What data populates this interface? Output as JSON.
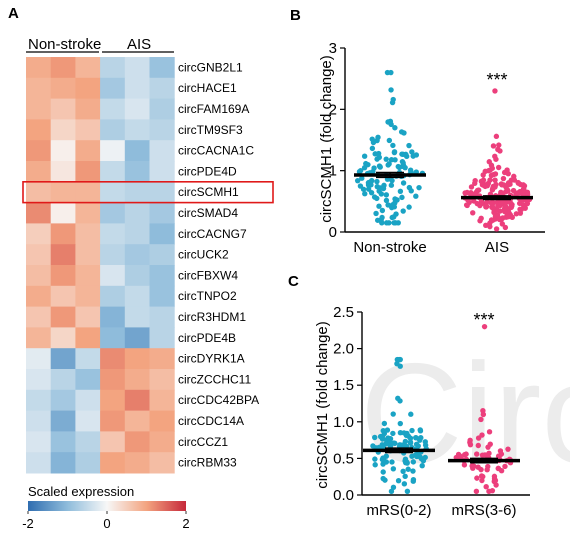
{
  "chart_data": [
    {
      "panel": "A",
      "type": "heatmap",
      "group_labels": [
        "Non-stroke",
        "AIS"
      ],
      "columns_per_group": 3,
      "rows": [
        "circGNB2L1",
        "circHACE1",
        "circFAM169A",
        "circTM9SF3",
        "circCACNA1C",
        "circPDE4D",
        "circSCMH1",
        "circSMAD4",
        "circCACNG7",
        "circUCK2",
        "circFBXW4",
        "circTNPO2",
        "circR3HDM1",
        "circPDE4B",
        "circDYRK1A",
        "circZCCHC11",
        "circCDC42BPA",
        "circCDC14A",
        "circCCZ1",
        "circRBM33"
      ],
      "highlighted_row": "circSCMH1",
      "values": [
        [
          0.9,
          1.1,
          0.8,
          -0.6,
          -0.4,
          -0.9
        ],
        [
          0.8,
          0.9,
          1.0,
          -0.8,
          -0.4,
          -0.6
        ],
        [
          0.8,
          0.6,
          0.9,
          -0.5,
          -0.3,
          -0.7
        ],
        [
          1.0,
          0.4,
          0.6,
          -0.7,
          -0.5,
          -0.6
        ],
        [
          1.1,
          0.1,
          0.9,
          -0.1,
          -1.0,
          -0.4
        ],
        [
          0.9,
          0.2,
          1.1,
          -0.5,
          -0.9,
          -0.4
        ],
        [
          0.7,
          0.8,
          0.8,
          -0.5,
          -0.6,
          -0.6
        ],
        [
          1.2,
          0.1,
          0.8,
          -0.8,
          -0.6,
          -0.8
        ],
        [
          0.5,
          1.1,
          0.7,
          -0.5,
          -0.6,
          -1.0
        ],
        [
          0.6,
          1.3,
          0.7,
          -0.6,
          -0.8,
          -0.7
        ],
        [
          0.7,
          1.1,
          0.8,
          -0.3,
          -0.7,
          -0.9
        ],
        [
          0.9,
          0.6,
          0.8,
          -0.7,
          -0.5,
          -0.9
        ],
        [
          0.6,
          1.1,
          0.6,
          -1.1,
          -0.5,
          -0.6
        ],
        [
          0.8,
          0.4,
          1.0,
          -1.0,
          -1.3,
          -0.6
        ],
        [
          -0.2,
          -1.3,
          -0.5,
          1.2,
          1.0,
          0.9
        ],
        [
          -0.3,
          -0.6,
          -0.9,
          1.1,
          0.9,
          0.7
        ],
        [
          -0.5,
          -0.8,
          -0.4,
          1.0,
          1.3,
          0.8
        ],
        [
          -0.4,
          -1.2,
          -0.3,
          1.1,
          0.8,
          1.0
        ],
        [
          -0.3,
          -0.9,
          -0.6,
          0.6,
          1.1,
          0.9
        ],
        [
          -0.4,
          -1.1,
          -0.7,
          1.0,
          0.9,
          0.7
        ]
      ],
      "colorbar": {
        "label": "Scaled expression",
        "min": -2,
        "mid": 0,
        "max": 2,
        "ticks": [
          "-2",
          "0",
          "2"
        ],
        "low_color": "#2f6db0",
        "mid_color": "#f7f7f7",
        "high_color": "#c6283a"
      }
    },
    {
      "panel": "B",
      "type": "scatter",
      "ylabel": "circSCMH1 (fold change)",
      "ylim": [
        0,
        3
      ],
      "yticks": [
        "0",
        "1",
        "2",
        "3"
      ],
      "categories": [
        "Non-stroke",
        "AIS"
      ],
      "significance": "***",
      "series": [
        {
          "name": "Non-stroke",
          "color": "#1aa3c4",
          "mean": 0.93,
          "sem": 0.04,
          "n": 130,
          "min": 0.15,
          "max": 2.6
        },
        {
          "name": "AIS",
          "color": "#ec3f7c",
          "mean": 0.56,
          "sem": 0.03,
          "n": 190,
          "min": 0.05,
          "max": 2.3
        }
      ]
    },
    {
      "panel": "C",
      "type": "scatter",
      "ylabel": "circSCMH1 (fold change)",
      "ylim": [
        0,
        2.5
      ],
      "yticks": [
        "0.0",
        "0.5",
        "1.0",
        "1.5",
        "2.0",
        "2.5"
      ],
      "categories": [
        "mRS(0-2)",
        "mRS(3-6)"
      ],
      "significance": "***",
      "watermark": "Circ",
      "series": [
        {
          "name": "mRS(0-2)",
          "color": "#1aa3c4",
          "mean": 0.61,
          "sem": 0.03,
          "n": 110,
          "min": 0.05,
          "max": 1.85
        },
        {
          "name": "mRS(3-6)",
          "color": "#ec3f7c",
          "mean": 0.47,
          "sem": 0.03,
          "n": 65,
          "min": 0.05,
          "max": 2.3
        }
      ]
    }
  ]
}
